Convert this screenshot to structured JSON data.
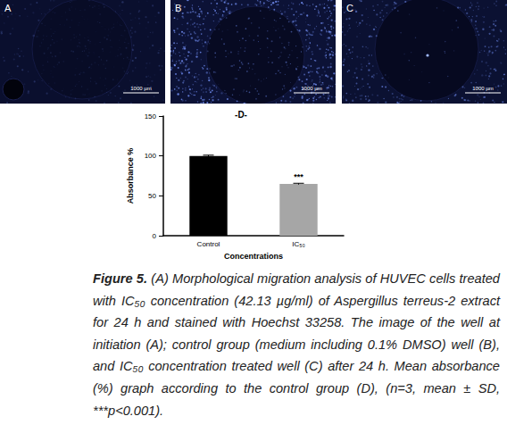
{
  "panels": [
    {
      "label": "A",
      "scale_bar": "1000 µm"
    },
    {
      "label": "B",
      "scale_bar": "1000 µm"
    },
    {
      "label": "C",
      "scale_bar": "1000 µm"
    }
  ],
  "chart_data": {
    "type": "bar",
    "title": "-D-",
    "x_label": "Concentrations",
    "y_label": "Absorbance %",
    "categories": [
      "Control",
      "IC₅₀"
    ],
    "values": [
      100,
      65
    ],
    "errors": [
      1,
      0.8
    ],
    "colors": [
      "#000000",
      "#a6a6a6"
    ],
    "ylim": [
      0,
      150
    ],
    "yticks": [
      0,
      50,
      100,
      150
    ],
    "grid": false,
    "annotations": [
      {
        "category": "IC₅₀",
        "text": "***"
      }
    ]
  },
  "caption": {
    "label": "Figure 5.",
    "text": "(A) Morphological migration analysis of HUVEC cells treated with IC₅₀ concentration (42.13 µg/ml) of Aspergillus terreus-2 extract for 24 h and stained with Hoechst 33258. The image of the well at initiation (A); control group (medium including 0.1% DMSO) well (B), and IC₅₀ concentration treated well (C) after 24 h. Mean absorbance (%) graph according to the control group (D), (n=3, mean ± SD, ***p<0.001)."
  }
}
